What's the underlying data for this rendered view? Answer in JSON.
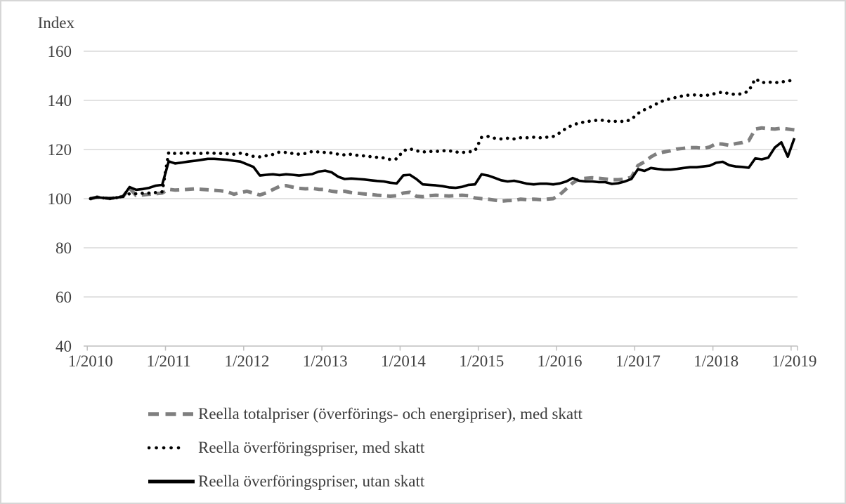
{
  "frame": {
    "background": "#ffffff",
    "border_color": "#d6d6d6"
  },
  "chart_data": {
    "type": "line",
    "title": "",
    "ylabel": "Index",
    "xlabel": "",
    "ylim": [
      40,
      160
    ],
    "yticks": [
      40,
      60,
      80,
      100,
      120,
      140,
      160
    ],
    "x_tick_labels": [
      "1/2010",
      "1/2011",
      "1/2012",
      "1/2013",
      "1/2014",
      "1/2015",
      "1/2016",
      "1/2017",
      "1/2018",
      "1/2019"
    ],
    "x_unit": "month",
    "n_points": 109,
    "grid": "horizontal",
    "legend_position": "bottom-left",
    "colors": {
      "grid": "#d9d9d9",
      "axis": "#bfbfbf",
      "tick_text": "#404040",
      "legend_text": "#3d3d3d"
    },
    "series": [
      {
        "name": "totalpriser_med_skatt",
        "legend_label": "Reella totalpriser (överförings- och energipriser), med skatt",
        "style": "dashed",
        "color": "#7f7f7f",
        "values": [
          100.0,
          100.6,
          100.3,
          100.1,
          100.4,
          100.9,
          104.3,
          101.3,
          101.5,
          101.8,
          102.0,
          102.3,
          103.8,
          103.5,
          103.6,
          103.8,
          104.0,
          103.8,
          103.6,
          103.4,
          103.2,
          102.8,
          101.8,
          102.5,
          103.0,
          102.3,
          101.5,
          102.4,
          103.7,
          105.0,
          105.3,
          104.7,
          104.2,
          104.0,
          104.2,
          103.8,
          103.7,
          103.0,
          102.7,
          103.0,
          102.5,
          102.2,
          101.9,
          101.7,
          101.4,
          101.2,
          101.0,
          101.2,
          102.3,
          102.6,
          101.0,
          100.8,
          101.2,
          101.4,
          101.2,
          101.1,
          101.2,
          101.4,
          101.2,
          100.3,
          100.0,
          99.8,
          99.4,
          99.0,
          99.2,
          99.3,
          99.8,
          99.6,
          99.8,
          99.6,
          99.8,
          100.0,
          101.6,
          104.0,
          106.4,
          108.0,
          108.3,
          108.5,
          108.3,
          108.0,
          107.7,
          107.7,
          108.0,
          108.7,
          113.5,
          115.0,
          117.0,
          118.5,
          119.0,
          119.5,
          120.2,
          120.5,
          120.8,
          120.8,
          120.5,
          121.0,
          122.4,
          122.2,
          121.7,
          122.4,
          122.8,
          123.6,
          128.3,
          128.8,
          128.5,
          128.3,
          128.7,
          128.3,
          128.0
        ]
      },
      {
        "name": "overforingspriser_med_skatt",
        "legend_label": "Reella överföringspriser, med skatt",
        "style": "dotted",
        "color": "#000000",
        "values": [
          100.0,
          100.6,
          100.3,
          100.1,
          100.4,
          100.9,
          102.0,
          102.0,
          102.2,
          102.3,
          102.5,
          102.8,
          118.8,
          118.4,
          118.5,
          118.6,
          118.5,
          118.4,
          118.6,
          118.5,
          118.4,
          118.3,
          118.1,
          118.5,
          118.0,
          117.2,
          117.0,
          117.5,
          118.0,
          119.0,
          118.8,
          118.4,
          118.1,
          118.4,
          119.2,
          119.0,
          118.8,
          118.6,
          118.1,
          117.8,
          118.1,
          117.6,
          117.4,
          117.1,
          116.8,
          116.6,
          115.9,
          116.2,
          119.5,
          120.3,
          119.5,
          119.0,
          119.2,
          119.2,
          119.5,
          119.5,
          119.0,
          118.8,
          119.0,
          119.5,
          124.9,
          125.3,
          124.6,
          124.3,
          124.6,
          124.3,
          124.8,
          124.8,
          125.0,
          124.8,
          125.0,
          125.3,
          126.8,
          128.7,
          130.0,
          130.8,
          131.3,
          131.7,
          132.0,
          131.8,
          131.3,
          131.6,
          131.3,
          132.3,
          134.7,
          136.2,
          137.4,
          138.8,
          140.0,
          140.7,
          141.3,
          141.9,
          142.2,
          142.2,
          141.9,
          142.2,
          142.9,
          143.4,
          142.7,
          142.4,
          142.7,
          143.8,
          148.8,
          147.2,
          147.5,
          147.2,
          147.5,
          147.9,
          148.2
        ]
      },
      {
        "name": "overforingspriser_utan_skatt",
        "legend_label": "Reella överföringspriser, utan skatt",
        "style": "solid",
        "color": "#000000",
        "values": [
          100.0,
          100.6,
          100.3,
          100.1,
          100.4,
          100.9,
          104.7,
          103.6,
          103.9,
          104.4,
          105.3,
          105.6,
          115.2,
          114.3,
          114.7,
          115.1,
          115.4,
          115.8,
          116.2,
          116.2,
          116.0,
          115.8,
          115.4,
          115.1,
          114.0,
          112.9,
          109.4,
          109.7,
          109.9,
          109.6,
          109.9,
          109.7,
          109.4,
          109.7,
          110.0,
          111.0,
          111.4,
          110.7,
          108.9,
          108.0,
          108.2,
          108.0,
          107.8,
          107.5,
          107.2,
          107.0,
          106.5,
          106.2,
          109.5,
          109.7,
          108.0,
          105.8,
          105.6,
          105.4,
          105.1,
          104.6,
          104.4,
          104.8,
          105.6,
          105.8,
          109.9,
          109.4,
          108.5,
          107.5,
          107.0,
          107.3,
          106.7,
          106.1,
          105.8,
          106.1,
          106.1,
          105.8,
          106.2,
          107.0,
          108.4,
          107.3,
          107.0,
          107.0,
          106.7,
          106.7,
          106.0,
          106.3,
          107.0,
          108.0,
          112.0,
          111.3,
          112.5,
          112.1,
          111.8,
          111.8,
          112.1,
          112.5,
          112.8,
          112.8,
          113.1,
          113.4,
          114.6,
          115.0,
          113.6,
          113.1,
          112.9,
          112.6,
          116.4,
          116.0,
          116.7,
          120.8,
          122.9,
          117.1,
          124.6
        ]
      }
    ]
  }
}
